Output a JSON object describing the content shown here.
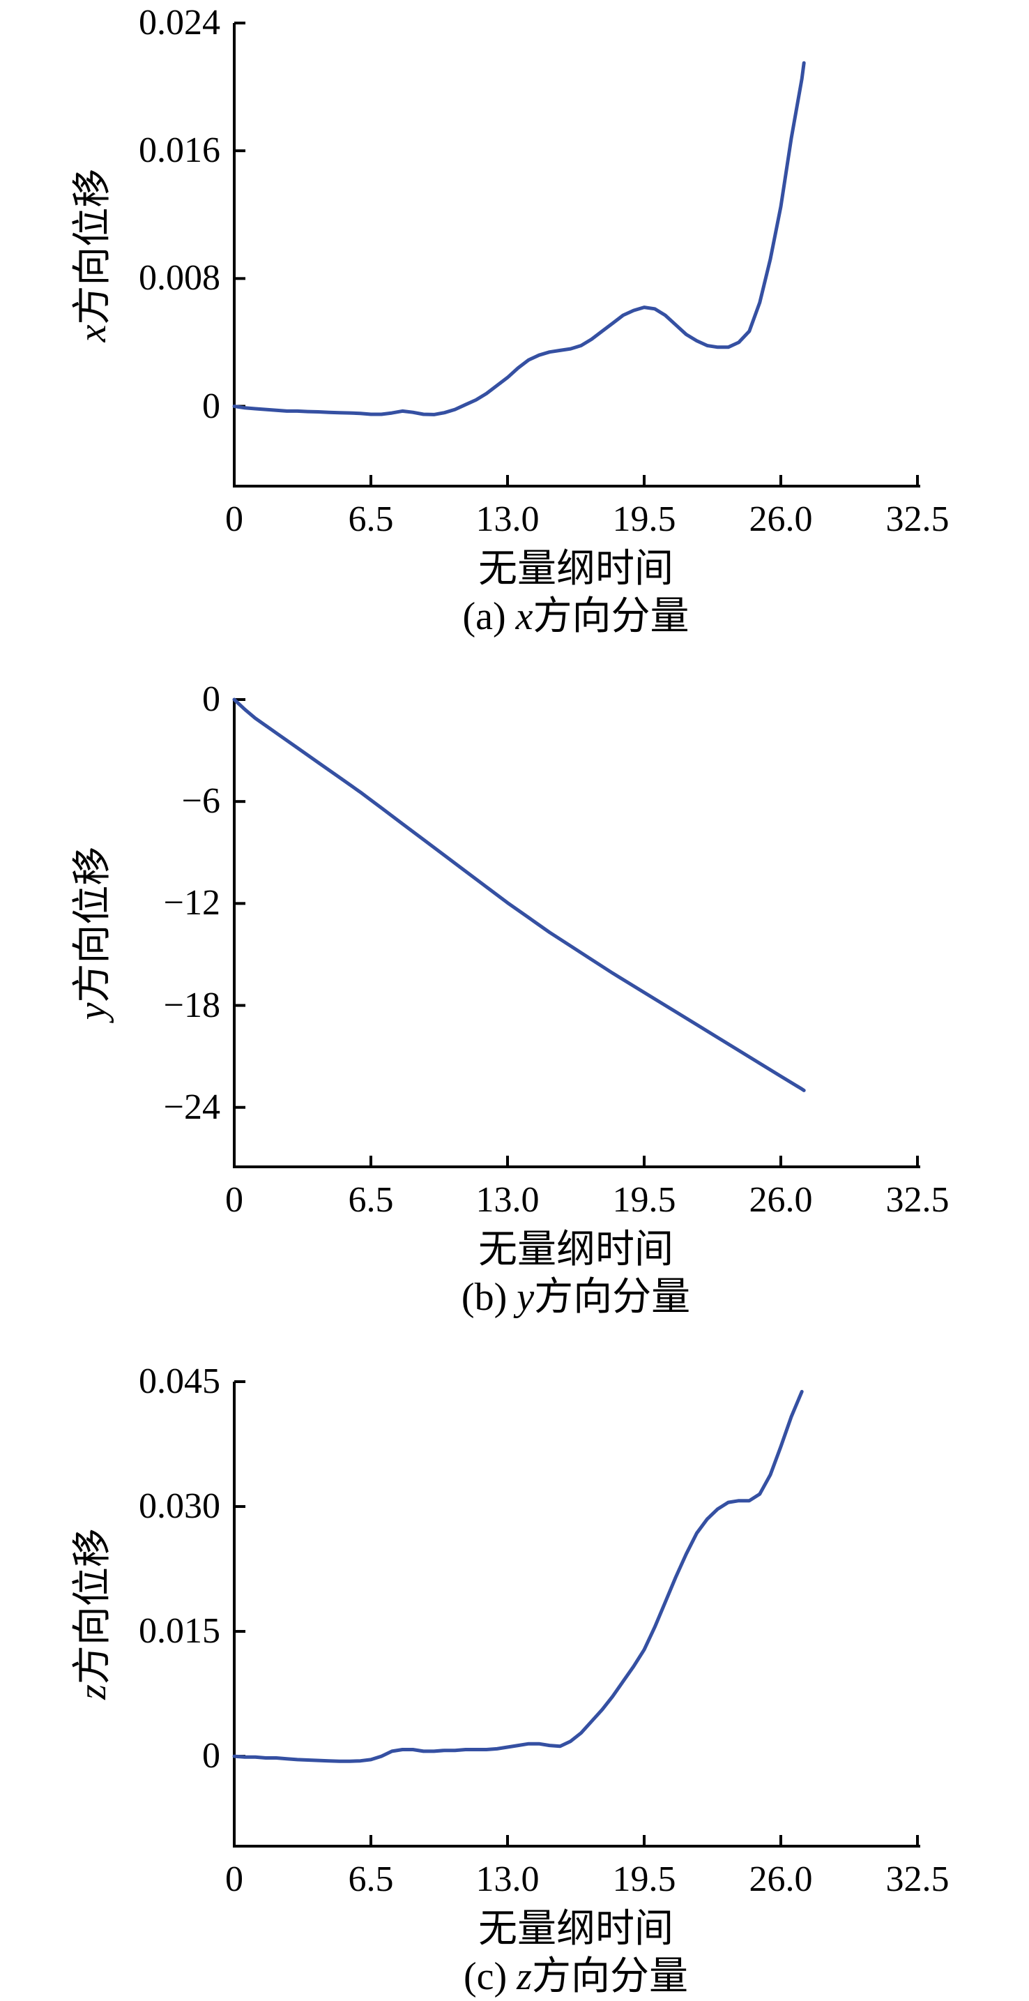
{
  "colors": {
    "curve": "#3550A2",
    "axis": "#000000",
    "text": "#000000"
  },
  "chart_data": [
    {
      "id": "a",
      "type": "line",
      "caption_prefix": "(a)",
      "caption_var": "x",
      "caption_suffix": "方向分量",
      "xlabel": "无量纲时间",
      "ylabel_var": "x",
      "ylabel_suffix": "方向位移",
      "xlim": [
        0,
        32.5
      ],
      "ylim": [
        -0.005,
        0.024
      ],
      "grid": false,
      "legend": null,
      "xticks": {
        "values": [
          0,
          6.5,
          13,
          19.5,
          26,
          32.5
        ],
        "labels": [
          "0",
          "6.5",
          "13.0",
          "19.5",
          "26.0",
          "32.5"
        ]
      },
      "yticks": {
        "values": [
          0.024,
          0.016,
          0.008,
          0
        ],
        "labels": [
          "0.024",
          "0.016",
          "0.008",
          "0"
        ]
      },
      "series": [
        [
          0,
          0
        ],
        [
          0.5,
          -0.0001
        ],
        [
          1,
          -0.00015
        ],
        [
          1.5,
          -0.0002
        ],
        [
          2,
          -0.00025
        ],
        [
          2.5,
          -0.0003
        ],
        [
          3,
          -0.0003
        ],
        [
          3.5,
          -0.00033
        ],
        [
          4,
          -0.00035
        ],
        [
          4.5,
          -0.00038
        ],
        [
          5,
          -0.0004
        ],
        [
          5.5,
          -0.00042
        ],
        [
          6,
          -0.00045
        ],
        [
          6.5,
          -0.0005
        ],
        [
          7,
          -0.0005
        ],
        [
          7.5,
          -0.00042
        ],
        [
          8,
          -0.0003
        ],
        [
          8.5,
          -0.00038
        ],
        [
          9,
          -0.0005
        ],
        [
          9.5,
          -0.00052
        ],
        [
          10,
          -0.0004
        ],
        [
          10.5,
          -0.0002
        ],
        [
          11,
          0.0001
        ],
        [
          11.5,
          0.0004
        ],
        [
          12,
          0.0008
        ],
        [
          12.5,
          0.0013
        ],
        [
          13,
          0.0018
        ],
        [
          13.5,
          0.0024
        ],
        [
          14,
          0.0029
        ],
        [
          14.5,
          0.0032
        ],
        [
          15,
          0.0034
        ],
        [
          15.5,
          0.0035
        ],
        [
          16,
          0.0036
        ],
        [
          16.5,
          0.0038
        ],
        [
          17,
          0.0042
        ],
        [
          17.5,
          0.0047
        ],
        [
          18,
          0.0052
        ],
        [
          18.5,
          0.0057
        ],
        [
          19,
          0.006
        ],
        [
          19.5,
          0.0062
        ],
        [
          20,
          0.0061
        ],
        [
          20.5,
          0.0057
        ],
        [
          21,
          0.0051
        ],
        [
          21.5,
          0.0045
        ],
        [
          22,
          0.0041
        ],
        [
          22.5,
          0.0038
        ],
        [
          23,
          0.0037
        ],
        [
          23.5,
          0.0037
        ],
        [
          24,
          0.004
        ],
        [
          24.5,
          0.0047
        ],
        [
          25,
          0.0065
        ],
        [
          25.5,
          0.0092
        ],
        [
          26,
          0.0125
        ],
        [
          26.5,
          0.0168
        ],
        [
          27,
          0.0205
        ],
        [
          27.1,
          0.0215
        ]
      ]
    },
    {
      "id": "b",
      "type": "line",
      "caption_prefix": "(b)",
      "caption_var": "y",
      "caption_suffix": "方向分量",
      "xlabel": "无量纲时间",
      "ylabel_var": "y",
      "ylabel_suffix": "方向位移",
      "xlim": [
        0,
        32.5
      ],
      "ylim": [
        -27.5,
        0
      ],
      "grid": false,
      "legend": null,
      "xticks": {
        "values": [
          0,
          6.5,
          13,
          19.5,
          26,
          32.5
        ],
        "labels": [
          "0",
          "6.5",
          "13.0",
          "19.5",
          "26.0",
          "32.5"
        ]
      },
      "yticks": {
        "values": [
          0,
          -6,
          -12,
          -18,
          -24
        ],
        "labels": [
          "0",
          "−6",
          "−12",
          "−18",
          "−24"
        ]
      },
      "series": [
        [
          0,
          0
        ],
        [
          0.5,
          -0.58
        ],
        [
          1,
          -1.1
        ],
        [
          2,
          -1.97
        ],
        [
          3,
          -2.84
        ],
        [
          4,
          -3.71
        ],
        [
          5,
          -4.58
        ],
        [
          6,
          -5.45
        ],
        [
          7,
          -6.38
        ],
        [
          8,
          -7.31
        ],
        [
          9,
          -8.24
        ],
        [
          10,
          -9.17
        ],
        [
          11,
          -10.1
        ],
        [
          12,
          -11.03
        ],
        [
          13,
          -11.96
        ],
        [
          14,
          -12.83
        ],
        [
          15,
          -13.7
        ],
        [
          16,
          -14.5
        ],
        [
          17,
          -15.3
        ],
        [
          18,
          -16.1
        ],
        [
          19,
          -16.86
        ],
        [
          20,
          -17.62
        ],
        [
          21,
          -18.37
        ],
        [
          22,
          -19.13
        ],
        [
          23,
          -19.89
        ],
        [
          24,
          -20.65
        ],
        [
          25,
          -21.41
        ],
        [
          26,
          -22.17
        ],
        [
          27,
          -22.92
        ],
        [
          27.1,
          -23.0
        ]
      ]
    },
    {
      "id": "c",
      "type": "line",
      "caption_prefix": "(c)",
      "caption_var": "z",
      "caption_suffix": "方向分量",
      "xlabel": "无量纲时间",
      "ylabel_var": "z",
      "ylabel_suffix": "方向位移",
      "xlim": [
        0,
        32.5
      ],
      "ylim": [
        -0.0108,
        0.045
      ],
      "grid": false,
      "legend": null,
      "xticks": {
        "values": [
          0,
          6.5,
          13,
          19.5,
          26,
          32.5
        ],
        "labels": [
          "0",
          "6.5",
          "13.0",
          "19.5",
          "26.0",
          "32.5"
        ]
      },
      "yticks": {
        "values": [
          0.045,
          0.03,
          0.015,
          0
        ],
        "labels": [
          "0.045",
          "0.030",
          "0.015",
          "0"
        ]
      },
      "series": [
        [
          0,
          0
        ],
        [
          0.5,
          -0.0001
        ],
        [
          1,
          -0.0001
        ],
        [
          1.5,
          -0.0002
        ],
        [
          2,
          -0.0002
        ],
        [
          2.5,
          -0.0003
        ],
        [
          3,
          -0.0004
        ],
        [
          3.5,
          -0.00045
        ],
        [
          4,
          -0.0005
        ],
        [
          4.5,
          -0.00055
        ],
        [
          5,
          -0.0006
        ],
        [
          5.5,
          -0.0006
        ],
        [
          6,
          -0.00055
        ],
        [
          6.5,
          -0.0004
        ],
        [
          7,
          0
        ],
        [
          7.5,
          0.0006
        ],
        [
          8,
          0.0008
        ],
        [
          8.5,
          0.0008
        ],
        [
          9,
          0.0006
        ],
        [
          9.5,
          0.0006
        ],
        [
          10,
          0.0007
        ],
        [
          10.5,
          0.0007
        ],
        [
          11,
          0.0008
        ],
        [
          11.5,
          0.0008
        ],
        [
          12,
          0.0008
        ],
        [
          12.5,
          0.0009
        ],
        [
          13,
          0.0011
        ],
        [
          13.5,
          0.0013
        ],
        [
          14,
          0.0015
        ],
        [
          14.5,
          0.0015
        ],
        [
          15,
          0.0013
        ],
        [
          15.5,
          0.0012
        ],
        [
          16,
          0.0018
        ],
        [
          16.5,
          0.0028
        ],
        [
          17,
          0.0042
        ],
        [
          17.5,
          0.0056
        ],
        [
          18,
          0.0072
        ],
        [
          18.5,
          0.009
        ],
        [
          19,
          0.0108
        ],
        [
          19.5,
          0.0128
        ],
        [
          20,
          0.0155
        ],
        [
          20.5,
          0.0185
        ],
        [
          21,
          0.0215
        ],
        [
          21.5,
          0.0243
        ],
        [
          22,
          0.0268
        ],
        [
          22.5,
          0.0285
        ],
        [
          23,
          0.0297
        ],
        [
          23.5,
          0.0305
        ],
        [
          24,
          0.0307
        ],
        [
          24.5,
          0.0307
        ],
        [
          25,
          0.0315
        ],
        [
          25.5,
          0.0338
        ],
        [
          26,
          0.0372
        ],
        [
          26.5,
          0.0408
        ],
        [
          27,
          0.0438
        ]
      ]
    }
  ]
}
